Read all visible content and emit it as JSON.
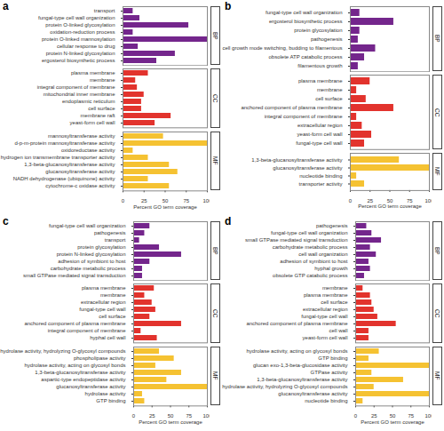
{
  "chart_data": [
    {
      "type": "bar",
      "orientation": "horizontal",
      "title": "a",
      "x_label": "Percent GO term coverage",
      "xlim": [
        0,
        100
      ],
      "xticks": [
        0,
        25,
        50,
        75,
        100
      ],
      "grid": false,
      "facets": [
        {
          "name": "BP",
          "color": "#74268c",
          "categories": [
            "transport",
            "fungal-type cell wall organization",
            "protein O-linked glycosylation",
            "oxidation-reduction process",
            "protein O-linked mannosylation",
            "cellular response to drug",
            "protein N-linked glycosylation",
            "ergosterol biosynthetic process"
          ],
          "values": [
            12,
            20,
            78,
            12,
            100,
            18,
            62,
            40
          ]
        },
        {
          "name": "CC",
          "color": "#e2332d",
          "categories": [
            "plasma membrane",
            "membrane",
            "integral component of membrane",
            "mitochondrial inner membrane",
            "endoplasmic reticulum",
            "cell surface",
            "membrane raft",
            "yeast-form cell wall"
          ],
          "values": [
            30,
            15,
            17,
            25,
            22,
            22,
            57,
            38
          ]
        },
        {
          "name": "MF",
          "color": "#f5c232",
          "categories": [
            "mannosyltransferase activity",
            "d-p-m-protein mannosyltransferase activity",
            "oxidoreductase activity",
            "hydrogen ion transmembrane transporter activity",
            "1,3-beta-glucanosyltransferase activity",
            "glucanosyltransferase activity",
            "NADH dehydrogenase (ubiquinone) activity",
            "cytochrome-c oxidase activity"
          ],
          "values": [
            48,
            100,
            12,
            30,
            55,
            65,
            30,
            55
          ]
        }
      ]
    },
    {
      "type": "bar",
      "orientation": "horizontal",
      "title": "b",
      "x_label": "Percent GO term coverage",
      "xlim": [
        0,
        100
      ],
      "xticks": [
        0,
        25,
        50,
        75,
        100
      ],
      "grid": false,
      "facets": [
        {
          "name": "BP",
          "color": "#74268c",
          "categories": [
            "fungal-type cell wall organization",
            "ergosterol biosynthetic process",
            "protein glycosylation",
            "pathogenesis",
            "cell growth mode switching, budding to filamentous",
            "obsolete ATP catabolic process",
            "filamentous growth"
          ],
          "values": [
            12,
            55,
            12,
            10,
            32,
            18,
            10
          ]
        },
        {
          "name": "CC",
          "color": "#e2332d",
          "categories": [
            "plasma membrane",
            "membrane",
            "cell surface",
            "anchored component of plasma membrane",
            "integral component of membrane",
            "extracellular region",
            "yeast-form cell wall",
            "fungal-type cell wall"
          ],
          "values": [
            25,
            8,
            20,
            55,
            8,
            15,
            27,
            18
          ]
        },
        {
          "name": "MF",
          "color": "#f5c232",
          "categories": [
            "1,3-beta-glucanosyltransferase activity",
            "glucanosyltransferase activity",
            "nucleotide binding",
            "transporter activity"
          ],
          "values": [
            62,
            100,
            8,
            18
          ]
        }
      ]
    },
    {
      "type": "bar",
      "orientation": "horizontal",
      "title": "c",
      "x_label": "Percent GO term coverage",
      "xlim": [
        0,
        100
      ],
      "xticks": [
        0,
        25,
        50,
        75,
        100
      ],
      "grid": false,
      "facets": [
        {
          "name": "BP",
          "color": "#74268c",
          "categories": [
            "fungal-type cell wall organization",
            "pathogenesis",
            "transport",
            "protein glycosylation",
            "protein N-linked glycosylation",
            "adhesion of symbiont to host",
            "carbohydrate metabolic process",
            "small GTPase mediated signal transduction"
          ],
          "values": [
            22,
            15,
            8,
            35,
            65,
            22,
            12,
            12
          ]
        },
        {
          "name": "CC",
          "color": "#e2332d",
          "categories": [
            "plasma membrane",
            "membrane",
            "extracellular region",
            "fungal-type cell wall",
            "cell surface",
            "anchored component of plasma membrane",
            "integral component of membrane",
            "hyphal cell wall"
          ],
          "values": [
            28,
            15,
            25,
            30,
            22,
            65,
            10,
            32
          ]
        },
        {
          "name": "MF",
          "color": "#f5c232",
          "categories": [
            "hydrolase activity, hydrolyzing O-glycosyl compounds",
            "phospholipase activity",
            "hydrolase activity, acting on glycosyl bonds",
            "1,3-beta-glucanosyltransferase activity",
            "aspartic-type endopeptidase activity",
            "glucanosyltransferase activity",
            "hydrolase activity",
            "GTP binding"
          ],
          "values": [
            35,
            55,
            30,
            65,
            45,
            100,
            12,
            15
          ]
        }
      ]
    },
    {
      "type": "bar",
      "orientation": "horizontal",
      "title": "d",
      "x_label": "Percent GO term coverage",
      "xlim": [
        0,
        100
      ],
      "xticks": [
        0,
        25,
        50,
        75,
        100
      ],
      "grid": false,
      "facets": [
        {
          "name": "BP",
          "color": "#74268c",
          "categories": [
            "pathogenesis",
            "fungal-type cell wall organization",
            "small GTPase mediated signal transduction",
            "carbohydrate metabolic process",
            "cell wall organization",
            "adhesion of symbiont to host",
            "hyphal growth",
            "obsolete GTP catabolic process"
          ],
          "values": [
            15,
            22,
            35,
            20,
            28,
            18,
            20,
            12
          ]
        },
        {
          "name": "CC",
          "color": "#e2332d",
          "categories": [
            "membrane",
            "plasma membrane",
            "cell surface",
            "extracellular region",
            "fungal-type cell wall",
            "anchored component of plasma membrane",
            "cell wall",
            "yeast-form cell wall"
          ],
          "values": [
            10,
            20,
            22,
            25,
            30,
            55,
            18,
            18
          ]
        },
        {
          "name": "MF",
          "color": "#f5c232",
          "categories": [
            "hydrolase activity, acting on glycosyl bonds",
            "GTP binding",
            "glucan exo-1,3-beta-glucosidase activity",
            "GTPase activity",
            "1,3-beta-glucanosyltransferase activity",
            "hydrolase activity, hydrolyzing O-glycosyl compounds",
            "glucanosyltransferase activity",
            "nucleotide binding"
          ],
          "values": [
            32,
            18,
            100,
            22,
            65,
            25,
            100,
            10
          ]
        }
      ]
    }
  ]
}
